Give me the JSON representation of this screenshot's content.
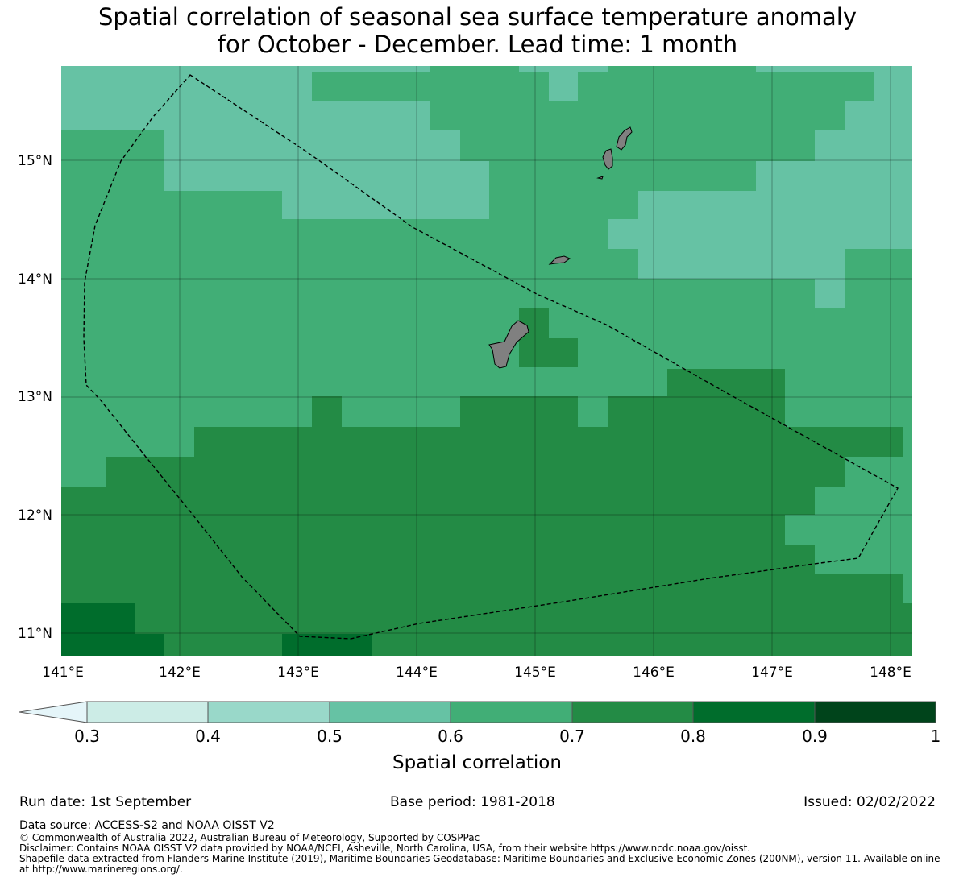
{
  "title": {
    "line1": "Spatial correlation of seasonal sea surface temperature anomaly",
    "line2": "for October - December. Lead time: 1 month"
  },
  "map": {
    "lon_ticks": [
      "141°E",
      "142°E",
      "143°E",
      "144°E",
      "145°E",
      "146°E",
      "147°E",
      "148°E"
    ],
    "lat_ticks": [
      "15°N",
      "14°N",
      "13°N",
      "12°N",
      "11°N"
    ],
    "background_color": "#238b45"
  },
  "colorbar": {
    "label": "Spatial correlation",
    "ticks": [
      "0.3",
      "0.4",
      "0.5",
      "0.6",
      "0.7",
      "0.8",
      "0.9",
      "1"
    ],
    "extend_color": "#e5f5f9",
    "colors": [
      "#ccece6",
      "#99d8c9",
      "#66c2a4",
      "#41ae76",
      "#238b45",
      "#006d2c",
      "#00441b"
    ]
  },
  "footer": {
    "run_date": "Run date: 1st September",
    "base_period": "Base period: 1981-2018",
    "issued": "Issued: 02/02/2022",
    "data_source": "Data source: ACCESS-S2 and NOAA OISST V2",
    "copyright": "© Commonwealth of Australia 2022, Australian Bureau of Meteorology, Supported by COSPPac",
    "disclaimer": "Disclaimer: Contains NOAA OISST V2 data provided by NOAA/NCEI, Asheville, North Carolina, USA, from their website https://www.ncdc.noaa.gov/oisst.",
    "shapefile1": "Shapefile data extracted from Flanders Marine Institute (2019), Maritime Boundaries Geodatabase: Maritime Boundaries and Exclusive Economic Zones (200NM), version 11. Available online",
    "shapefile2": "at http://www.marineregions.org/."
  }
}
